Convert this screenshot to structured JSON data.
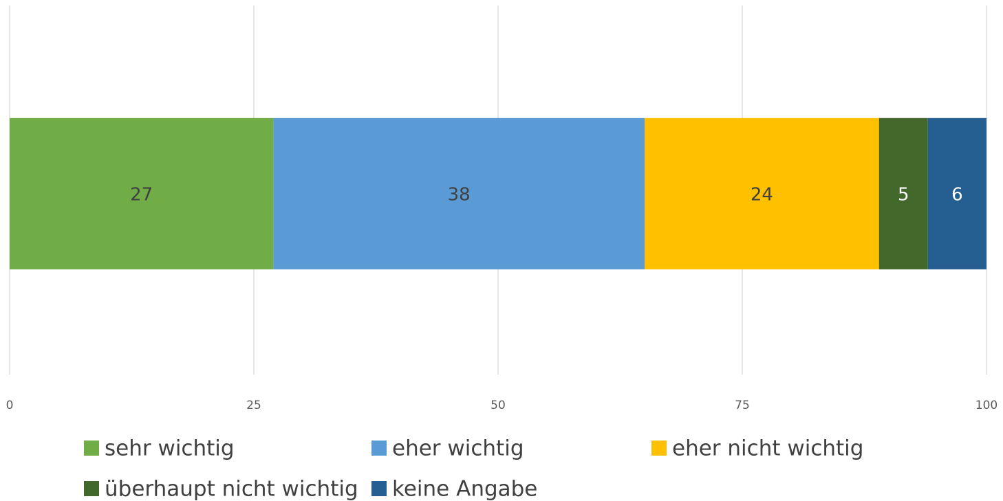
{
  "chart_data": {
    "type": "bar",
    "orientation": "horizontal",
    "stacked": true,
    "categories": [
      null
    ],
    "series": [
      {
        "name": "sehr wichtig",
        "color": "#70ad47",
        "values": [
          27
        ]
      },
      {
        "name": "eher wichtig",
        "color": "#5b9bd5",
        "values": [
          38
        ]
      },
      {
        "name": "eher nicht wichtig",
        "color": "#ffc000",
        "values": [
          24
        ]
      },
      {
        "name": "überhaupt nicht wichtig",
        "color": "#43682b",
        "values": [
          5
        ]
      },
      {
        "name": "keine Angabe",
        "color": "#255e91",
        "values": [
          6
        ]
      }
    ],
    "xlim": [
      0,
      100
    ],
    "xticks": [
      0,
      25,
      50,
      75,
      100
    ],
    "grid": true,
    "legend": "bottom"
  }
}
